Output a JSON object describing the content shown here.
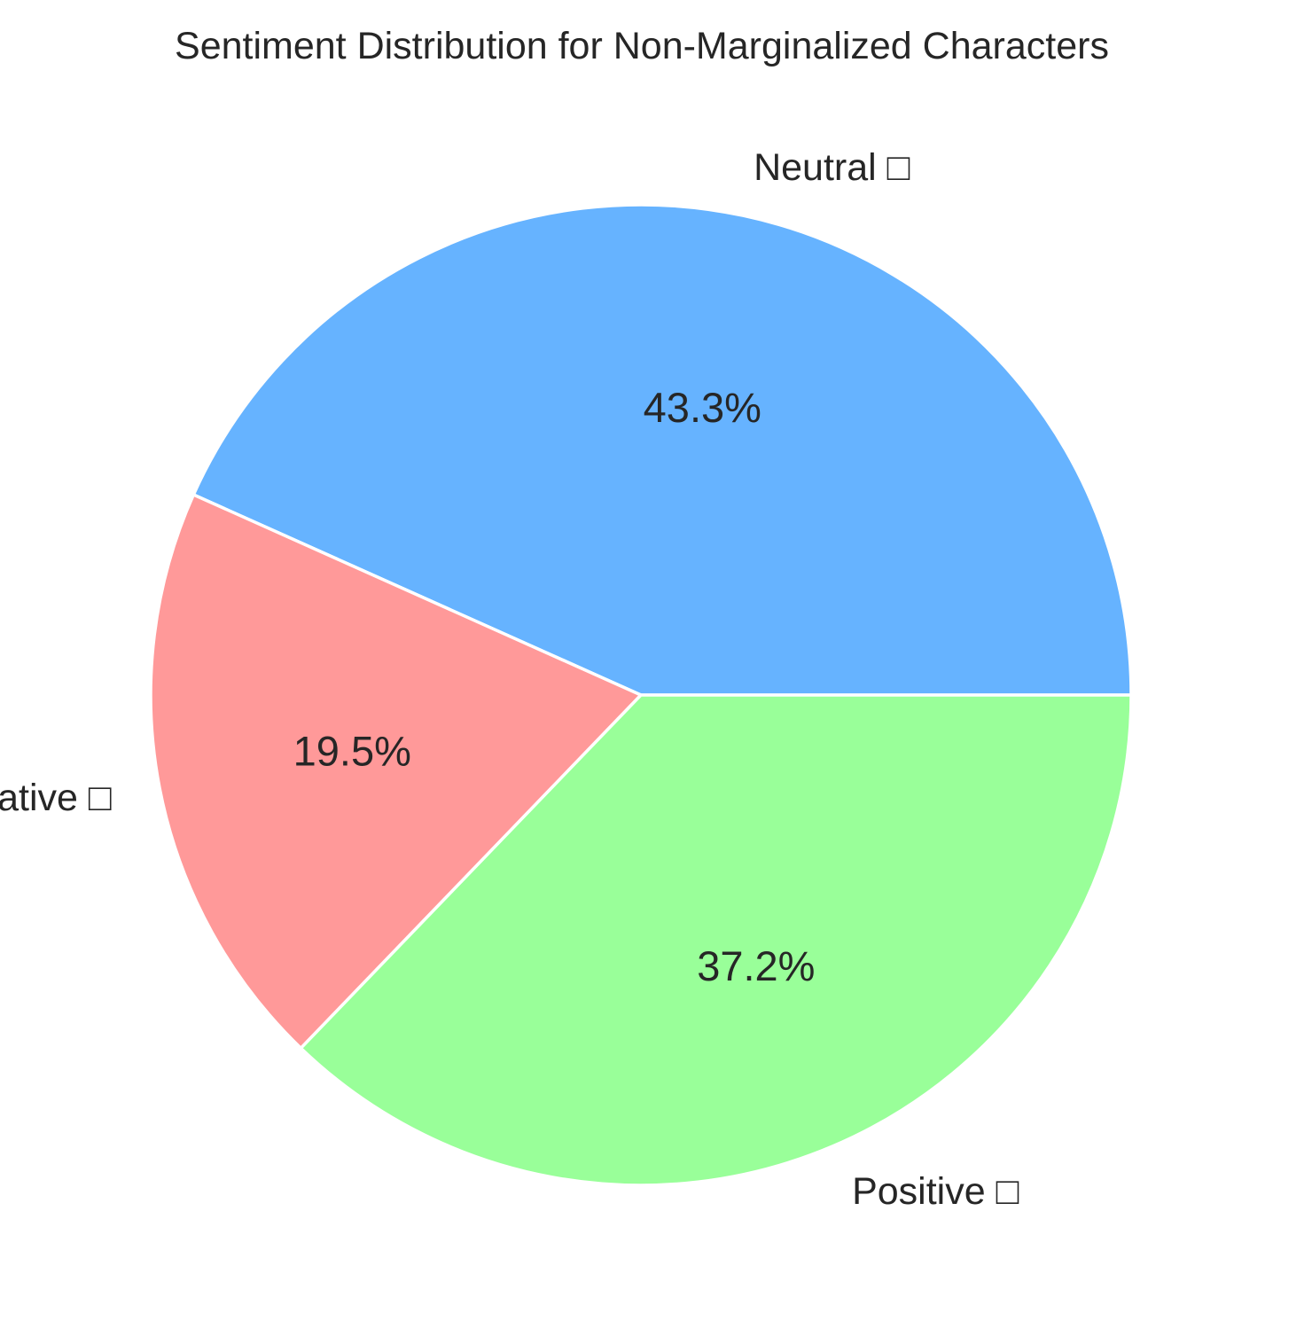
{
  "chart_data": {
    "type": "pie",
    "title": "Sentiment Distribution for Non-Marginalized Characters",
    "slices": [
      {
        "label": "Neutral □",
        "value": 43.3,
        "value_label": "43.3%",
        "color": "#66b3ff"
      },
      {
        "label": "Negative □",
        "value": 19.5,
        "value_label": "19.5%",
        "color": "#ff9999"
      },
      {
        "label": "Positive □",
        "value": 37.2,
        "value_label": "37.2%",
        "color": "#99ff99"
      }
    ],
    "start_angle_deg": 0,
    "direction": "counterclockwise",
    "wedge_edge_color": "#ffffff"
  }
}
